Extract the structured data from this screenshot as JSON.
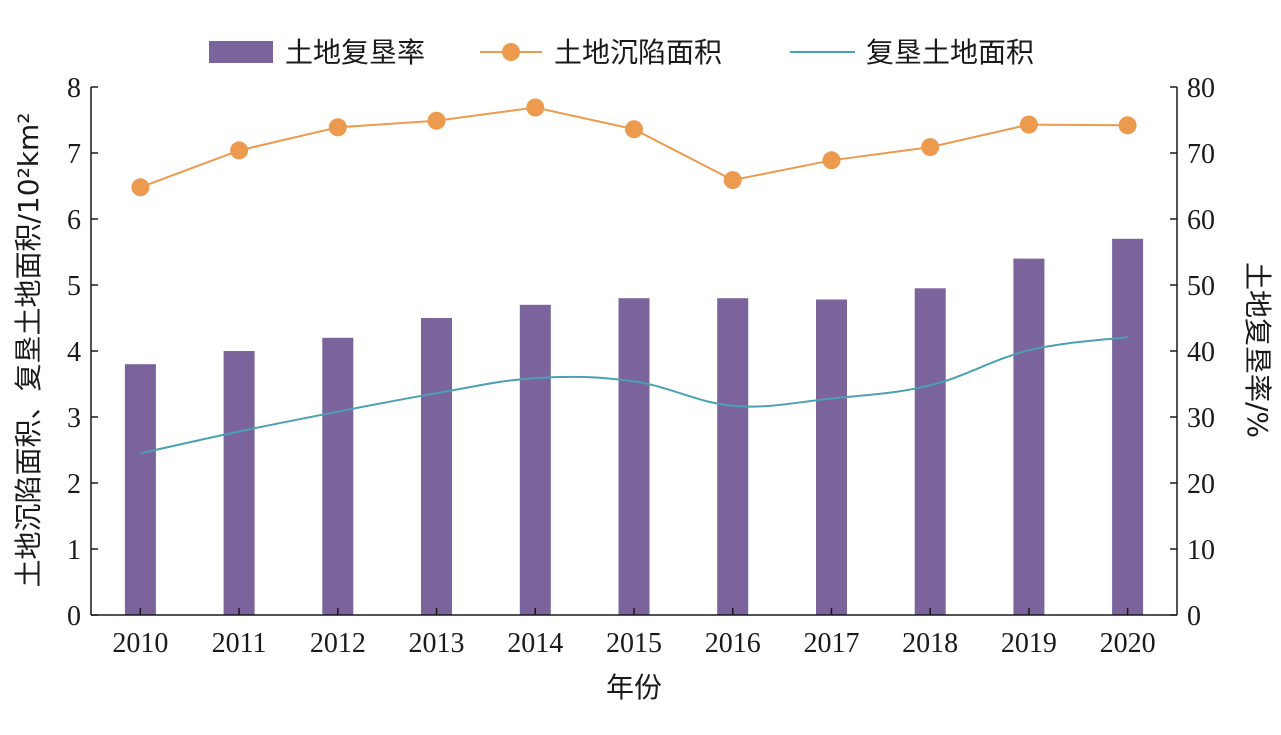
{
  "chart_data": {
    "type": "bar+line",
    "categories": [
      "2010",
      "2011",
      "2012",
      "2013",
      "2014",
      "2015",
      "2016",
      "2017",
      "2018",
      "2019",
      "2020"
    ],
    "xlabel": "年份",
    "ylabel_left": "土地沉陷面积、复垦土地面积/10²km²",
    "ylabel_right": "土地复垦率/%",
    "ylim_left": [
      0,
      8
    ],
    "ylim_right": [
      0,
      80
    ],
    "yticks_left": [
      "0",
      "1",
      "2",
      "3",
      "4",
      "5",
      "6",
      "7",
      "8"
    ],
    "yticks_right": [
      "0",
      "10",
      "20",
      "30",
      "40",
      "50",
      "60",
      "70",
      "80"
    ],
    "grid": false,
    "legend_position": "top",
    "series": [
      {
        "name": "土地复垦率",
        "type": "bar",
        "axis": "right",
        "color": "#7b649c",
        "values": [
          38,
          40,
          42,
          45,
          47,
          48,
          48,
          47.8,
          49.5,
          54,
          57
        ]
      },
      {
        "name": "土地沉陷面积",
        "type": "line-marker",
        "axis": "left",
        "color": "#ec9a4e",
        "values": [
          6.48,
          7.04,
          7.39,
          7.49,
          7.69,
          7.36,
          6.59,
          6.89,
          7.09,
          7.43,
          7.42
        ]
      },
      {
        "name": "复垦土地面积",
        "type": "line",
        "axis": "left",
        "color": "#4ba0b2",
        "values": [
          2.45,
          2.78,
          3.08,
          3.36,
          3.59,
          3.54,
          3.17,
          3.28,
          3.48,
          4.01,
          4.21
        ]
      }
    ]
  }
}
